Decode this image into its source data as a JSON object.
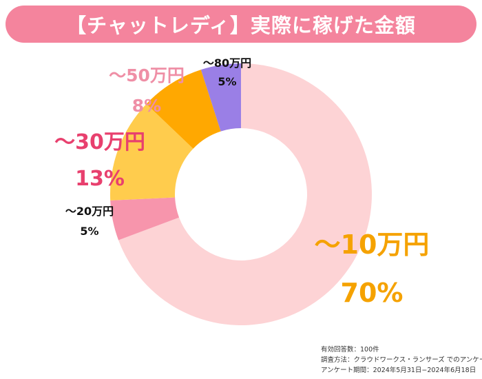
{
  "chart_data": {
    "type": "pie",
    "title": "【チャットレディ】実際に稼げた金額",
    "categories": [
      "〜10万円",
      "〜20万円",
      "〜30万円",
      "〜50万円",
      "〜80万円"
    ],
    "values": [
      70,
      5,
      13,
      8,
      5
    ],
    "value_labels": [
      "70%",
      "5%",
      "13%",
      "8%",
      "5%"
    ],
    "colors": [
      "#fdd3d5",
      "#f795ac",
      "#ffcc4d",
      "#ffa801",
      "#9a7fe6"
    ],
    "label_colors": [
      "#f5a200",
      "#111111",
      "#e8406e",
      "#ef8fa6",
      "#111111"
    ],
    "legend": "none"
  },
  "footnote": {
    "line1": "有効回答数：100件",
    "line2": "調査方法：クラウドワークス・ランサーズ でのアンケート",
    "line3": "アンケート期間：2024年5月31日−2024年6月18日"
  }
}
